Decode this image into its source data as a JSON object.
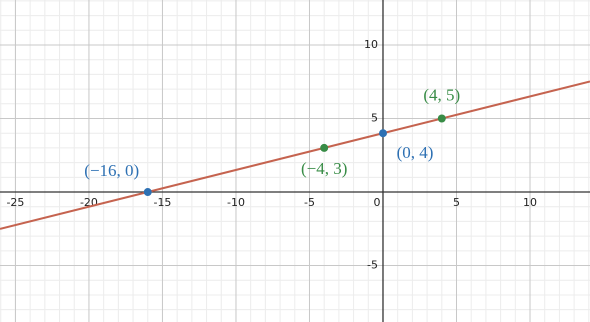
{
  "chart_data": {
    "type": "line",
    "xlim": [
      -26.05,
      14.08
    ],
    "ylim": [
      -8.84,
      13.06
    ],
    "xticks": [
      -25,
      -20,
      -15,
      -10,
      -5,
      0,
      5,
      10
    ],
    "yticks": [
      -5,
      5,
      10
    ],
    "grid": true,
    "series": [
      {
        "color": "#c5634f",
        "x": [
          -26.05,
          14.08
        ],
        "values": [
          -2.51,
          7.52
        ]
      }
    ],
    "points": [
      {
        "x": -16,
        "y": 0,
        "label": "(−16, 0)",
        "color": "#2d70b3"
      },
      {
        "x": -4,
        "y": 3,
        "label": "(−4, 3)",
        "color": "#388c46"
      },
      {
        "x": 0,
        "y": 4,
        "label": "(0, 4)",
        "color": "#2d70b3"
      },
      {
        "x": 4,
        "y": 5,
        "label": "(4, 5)",
        "color": "#388c46"
      }
    ]
  }
}
